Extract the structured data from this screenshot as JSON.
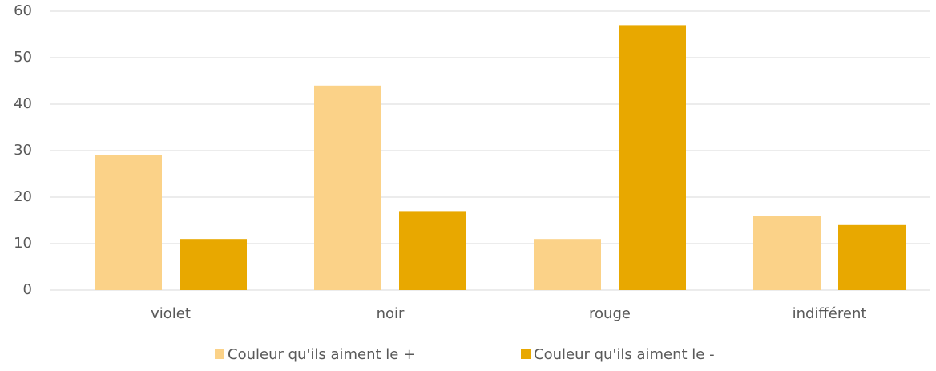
{
  "chart_data": {
    "type": "bar",
    "categories": [
      "violet",
      "noir",
      "rouge",
      "indifférent"
    ],
    "series": [
      {
        "name": "Couleur qu'ils aiment le +",
        "color": "#fbd288",
        "values": [
          29,
          44,
          11,
          16
        ]
      },
      {
        "name": "Couleur qu'ils aiment le -",
        "color": "#e8a800",
        "values": [
          11,
          17,
          57,
          14
        ]
      }
    ],
    "ylim": [
      0,
      60
    ],
    "yticks": [
      0,
      10,
      20,
      30,
      40,
      50,
      60
    ],
    "grid": true,
    "legend": "bottom"
  }
}
